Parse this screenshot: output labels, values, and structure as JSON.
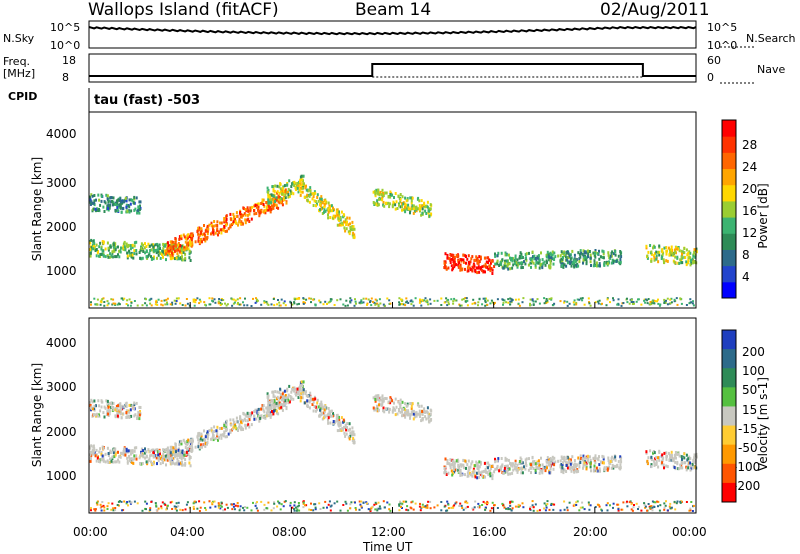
{
  "header": {
    "station": "Wallops Island (fitACF)",
    "beam": "Beam 14",
    "date": "02/Aug/2011"
  },
  "nsky_panel": {
    "left_label": "N.Sky",
    "right_label": "N.Search",
    "left_ticks": [
      "10^5",
      "10^0"
    ],
    "right_ticks": [
      "10^5",
      "10^0"
    ]
  },
  "freq_panel": {
    "left_label_1": "Freq.",
    "left_label_2": "[MHz]",
    "right_label": "Nave",
    "left_ticks": [
      "18",
      "8"
    ],
    "right_ticks": [
      "60",
      "0"
    ]
  },
  "cpid": {
    "label": "CPID",
    "value": "tau (fast) -503"
  },
  "x_axis": {
    "title": "Time UT",
    "ticks": [
      "00:00",
      "04:00",
      "08:00",
      "12:00",
      "16:00",
      "20:00",
      "00:00"
    ]
  },
  "power_panel": {
    "ylabel": "Slant Range [km]",
    "yticks": [
      "4000",
      "3000",
      "2000",
      "1000"
    ],
    "colorbar_label": "Power [dB]",
    "colorbar_ticks": [
      "28",
      "24",
      "20",
      "16",
      "12",
      "8",
      "4"
    ],
    "colors": [
      "#0000ff",
      "#2244cc",
      "#2d6b8a",
      "#2e8b57",
      "#3cb371",
      "#9acd32",
      "#ffd700",
      "#ffa500",
      "#ff6600",
      "#ff3300",
      "#ff0000"
    ]
  },
  "velocity_panel": {
    "ylabel": "Slant Range [km]",
    "yticks": [
      "4000",
      "3000",
      "2000",
      "1000"
    ],
    "colorbar_label": "Velocity [m s-1]",
    "colorbar_ticks": [
      "200",
      "100",
      "50",
      "15",
      "-15",
      "-50",
      "-100",
      "-200"
    ],
    "colors": [
      "#1f3fbf",
      "#2d6b8a",
      "#2e8b57",
      "#55c040",
      "#c8c8c0",
      "#ffcc33",
      "#ff9900",
      "#ff5500",
      "#ff0000"
    ]
  },
  "chart_data": {
    "type": "heatmap",
    "x_unit": "hours UT",
    "xlim": [
      0,
      24
    ],
    "ylim": [
      0,
      4500
    ],
    "scatter_bands": [
      {
        "start": 0.0,
        "end": 4.0,
        "range_start": 1400,
        "range_end": 1300,
        "power": 12
      },
      {
        "start": 3.0,
        "end": 7.8,
        "range_start": 1350,
        "range_end": 2600,
        "power": 22
      },
      {
        "start": 7.0,
        "end": 8.5,
        "range_start": 2600,
        "range_end": 2900,
        "power": 14
      },
      {
        "start": 8.3,
        "end": 10.5,
        "range_start": 2800,
        "range_end": 1800,
        "power": 16
      },
      {
        "start": 0.0,
        "end": 2.0,
        "range_start": 2450,
        "range_end": 2400,
        "power": 8
      },
      {
        "start": 11.2,
        "end": 13.5,
        "range_start": 2600,
        "range_end": 2300,
        "power": 14
      },
      {
        "start": 14.0,
        "end": 16.0,
        "range_start": 1100,
        "range_end": 1000,
        "power": 26
      },
      {
        "start": 16.0,
        "end": 21.0,
        "range_start": 1100,
        "range_end": 1200,
        "power": 10
      },
      {
        "start": 22.0,
        "end": 24.0,
        "range_start": 1300,
        "range_end": 1200,
        "power": 14
      }
    ]
  }
}
